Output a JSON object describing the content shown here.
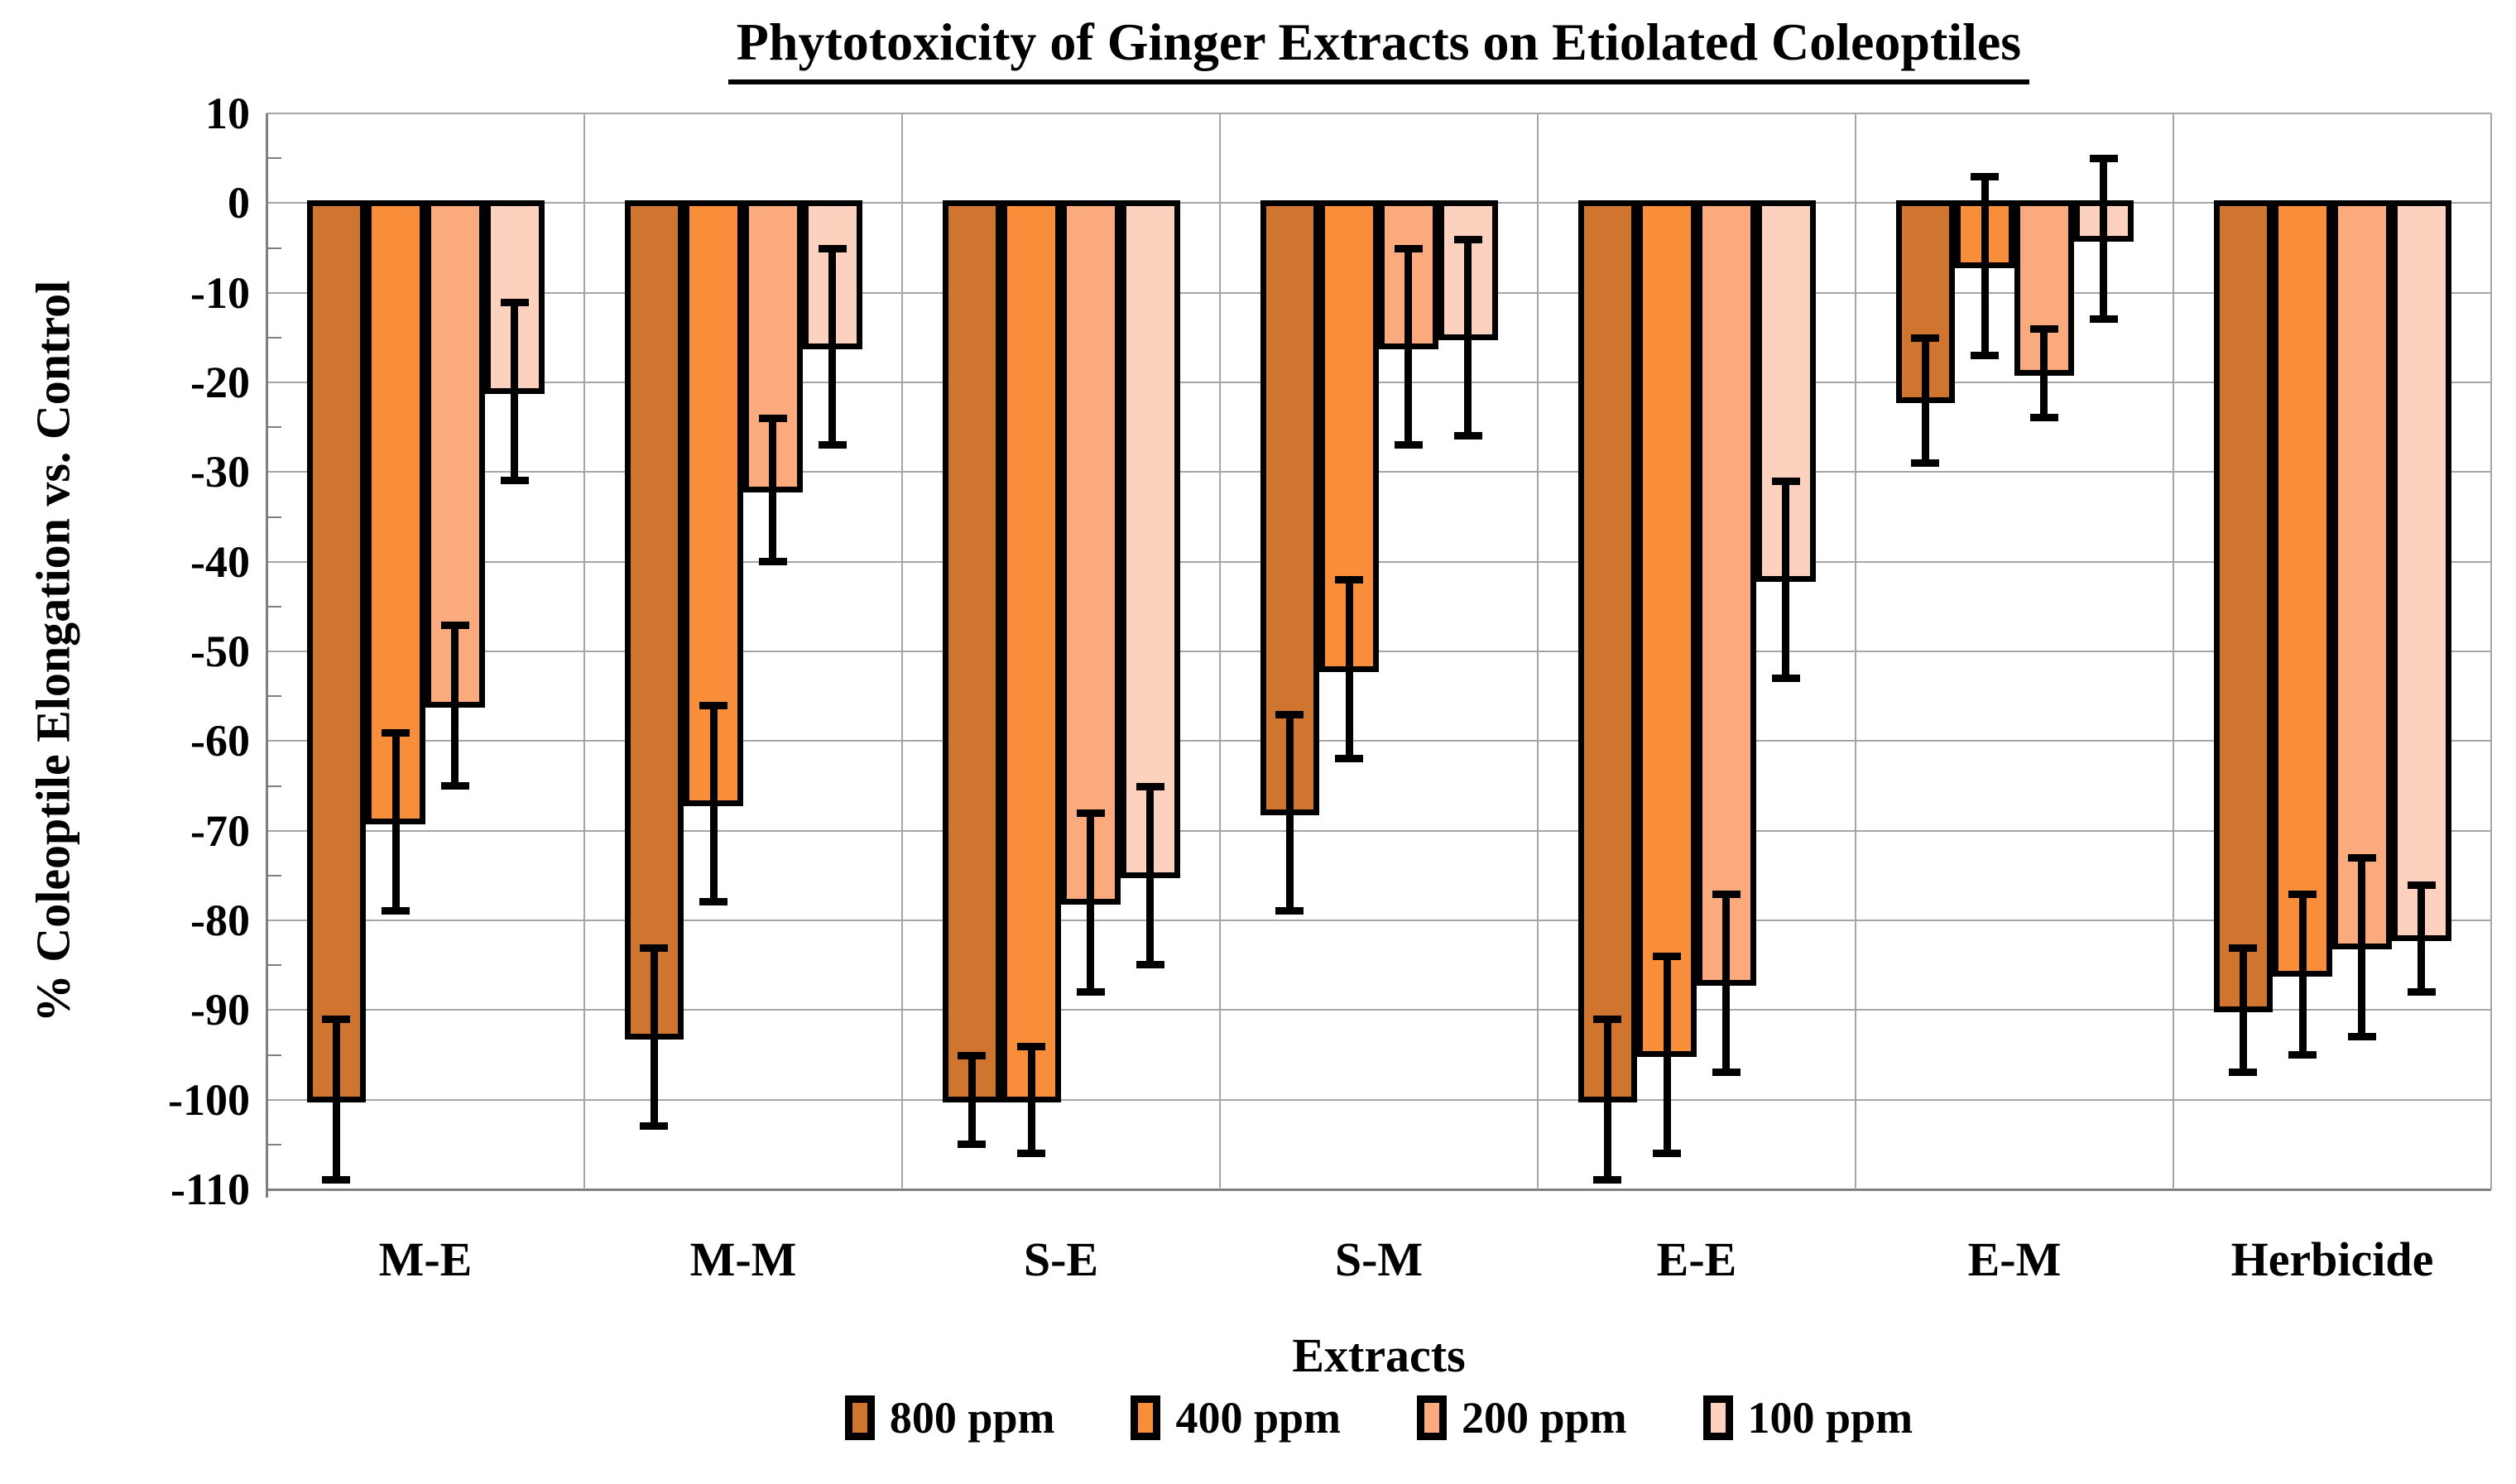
{
  "chart_data": {
    "type": "bar",
    "title": "Phytotoxicity of Ginger Extracts on Etiolated Coleoptiles",
    "xlabel": "Extracts",
    "ylabel": "% Coleoptile Elongation vs. Control",
    "ylim": [
      -110,
      10
    ],
    "ymajor_step": 10,
    "yminor_step": 5,
    "ytick_labels": [
      "10",
      "0",
      "-10",
      "-20",
      "-30",
      "-40",
      "-50",
      "-60",
      "-70",
      "-80",
      "-90",
      "-100",
      "-110"
    ],
    "categories": [
      "M-E",
      "M-M",
      "S-E",
      "S-M",
      "E-E",
      "E-M",
      "Herbicide"
    ],
    "series": [
      {
        "name": "800 ppm",
        "color": "#D0752F",
        "values": [
          -100,
          -93,
          -100,
          -68,
          -100,
          -22,
          -90
        ],
        "errors": [
          9,
          10,
          5,
          11,
          9,
          7,
          7
        ]
      },
      {
        "name": "400 ppm",
        "color": "#F88E39",
        "values": [
          -69,
          -67,
          -100,
          -52,
          -95,
          -7,
          -86
        ],
        "errors": [
          10,
          11,
          6,
          10,
          11,
          10,
          9
        ]
      },
      {
        "name": "200 ppm",
        "color": "#FAAA7D",
        "values": [
          -56,
          -32,
          -78,
          -16,
          -87,
          -19,
          -83
        ],
        "errors": [
          9,
          8,
          10,
          11,
          10,
          5,
          10
        ]
      },
      {
        "name": "100 ppm",
        "color": "#FCD2BF",
        "values": [
          -21,
          -16,
          -75,
          -15,
          -42,
          -4,
          -82
        ],
        "errors": [
          10,
          11,
          10,
          11,
          11,
          9,
          6
        ]
      }
    ],
    "grid": true,
    "error_bars": true,
    "legend_position": "bottom",
    "colors": {
      "grid": "#A6A6A6",
      "axis": "#7F7F7F",
      "bar_border": "#000000",
      "error_bar": "#000000",
      "text": "#000000",
      "background": "#FFFFFF"
    }
  }
}
